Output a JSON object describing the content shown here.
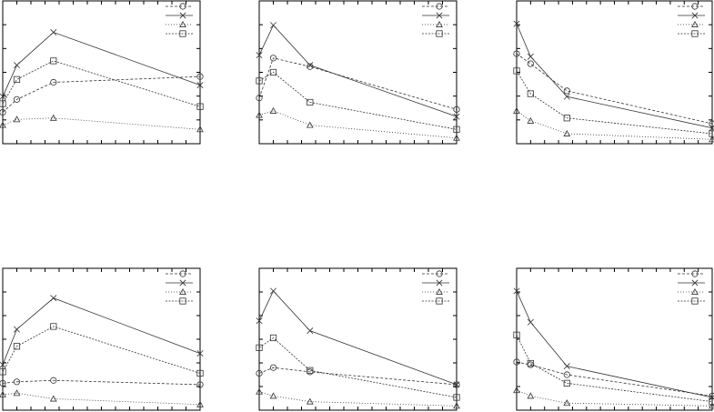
{
  "styles": {
    "line_color": "#333333",
    "series_dashes": [
      "3,2",
      "",
      "1,2",
      "2,1.5"
    ],
    "series_markers": [
      "circle",
      "cross",
      "triangle",
      "square"
    ]
  },
  "chart_data": [
    {
      "type": "line",
      "panel": "top-left",
      "xlim": [
        0,
        14
      ],
      "ylim": [
        0,
        1
      ],
      "xticks": 14,
      "yticks": 6,
      "legend_placement": "top-right",
      "grid": false,
      "series": [
        {
          "marker": "circle",
          "x": [
            0,
            1,
            3.6,
            14
          ],
          "y": [
            0.22,
            0.31,
            0.43,
            0.47
          ]
        },
        {
          "marker": "cross",
          "x": [
            0,
            1,
            3.6,
            14
          ],
          "y": [
            0.33,
            0.55,
            0.78,
            0.41
          ]
        },
        {
          "marker": "triangle",
          "x": [
            0,
            1,
            3.6,
            14
          ],
          "y": [
            0.13,
            0.17,
            0.18,
            0.1
          ]
        },
        {
          "marker": "square",
          "x": [
            0,
            1,
            3.6,
            14
          ],
          "y": [
            0.28,
            0.45,
            0.58,
            0.26
          ]
        }
      ]
    },
    {
      "type": "line",
      "panel": "top-middle",
      "xlim": [
        0,
        14
      ],
      "ylim": [
        0,
        1
      ],
      "xticks": 14,
      "yticks": 6,
      "legend_placement": "top-right",
      "grid": false,
      "series": [
        {
          "marker": "circle",
          "x": [
            0,
            1,
            3.6,
            14
          ],
          "y": [
            0.32,
            0.6,
            0.54,
            0.24
          ]
        },
        {
          "marker": "cross",
          "x": [
            0,
            1,
            3.6,
            14
          ],
          "y": [
            0.62,
            0.83,
            0.55,
            0.19
          ]
        },
        {
          "marker": "triangle",
          "x": [
            0,
            1,
            3.6,
            14
          ],
          "y": [
            0.2,
            0.23,
            0.13,
            0.04
          ]
        },
        {
          "marker": "square",
          "x": [
            0,
            1,
            3.6,
            14
          ],
          "y": [
            0.44,
            0.5,
            0.29,
            0.1
          ]
        }
      ]
    },
    {
      "type": "line",
      "panel": "top-right",
      "xlim": [
        0,
        14
      ],
      "ylim": [
        0,
        1
      ],
      "xticks": 14,
      "yticks": 6,
      "legend_placement": "top-right",
      "grid": false,
      "series": [
        {
          "marker": "circle",
          "x": [
            0,
            1,
            3.6,
            14
          ],
          "y": [
            0.63,
            0.56,
            0.37,
            0.14
          ]
        },
        {
          "marker": "cross",
          "x": [
            0,
            1,
            3.6,
            14
          ],
          "y": [
            0.84,
            0.61,
            0.33,
            0.11
          ]
        },
        {
          "marker": "triangle",
          "x": [
            0,
            1,
            3.6,
            14
          ],
          "y": [
            0.23,
            0.16,
            0.07,
            0.03
          ]
        },
        {
          "marker": "square",
          "x": [
            0,
            1,
            3.6,
            14
          ],
          "y": [
            0.51,
            0.35,
            0.18,
            0.07
          ]
        }
      ]
    },
    {
      "type": "line",
      "panel": "bottom-left",
      "xlim": [
        0,
        14
      ],
      "ylim": [
        0,
        1
      ],
      "xticks": 14,
      "yticks": 6,
      "legend_placement": "top-right",
      "grid": false,
      "series": [
        {
          "marker": "circle",
          "x": [
            0,
            1,
            3.6,
            14
          ],
          "y": [
            0.19,
            0.2,
            0.21,
            0.18
          ]
        },
        {
          "marker": "cross",
          "x": [
            0,
            1,
            3.6,
            14
          ],
          "y": [
            0.32,
            0.57,
            0.79,
            0.4
          ]
        },
        {
          "marker": "triangle",
          "x": [
            0,
            1,
            3.6,
            14
          ],
          "y": [
            0.11,
            0.12,
            0.08,
            0.04
          ]
        },
        {
          "marker": "square",
          "x": [
            0,
            1,
            3.6,
            14
          ],
          "y": [
            0.27,
            0.45,
            0.59,
            0.26
          ]
        }
      ]
    },
    {
      "type": "line",
      "panel": "bottom-middle",
      "xlim": [
        0,
        14
      ],
      "ylim": [
        0,
        1
      ],
      "xticks": 14,
      "yticks": 6,
      "legend_placement": "top-right",
      "grid": false,
      "series": [
        {
          "marker": "circle",
          "x": [
            0,
            1,
            3.6,
            14
          ],
          "y": [
            0.26,
            0.3,
            0.27,
            0.18
          ]
        },
        {
          "marker": "cross",
          "x": [
            0,
            1,
            3.6,
            14
          ],
          "y": [
            0.63,
            0.84,
            0.56,
            0.18
          ]
        },
        {
          "marker": "triangle",
          "x": [
            0,
            1,
            3.6,
            14
          ],
          "y": [
            0.13,
            0.1,
            0.06,
            0.03
          ]
        },
        {
          "marker": "square",
          "x": [
            0,
            1,
            3.6,
            14
          ],
          "y": [
            0.44,
            0.51,
            0.28,
            0.09
          ]
        }
      ]
    },
    {
      "type": "line",
      "panel": "bottom-right",
      "xlim": [
        0,
        14
      ],
      "ylim": [
        0,
        1
      ],
      "xticks": 14,
      "yticks": 6,
      "legend_placement": "top-right",
      "grid": false,
      "series": [
        {
          "marker": "circle",
          "x": [
            0,
            1,
            3.6,
            14
          ],
          "y": [
            0.34,
            0.32,
            0.25,
            0.1
          ]
        },
        {
          "marker": "cross",
          "x": [
            0,
            1,
            3.6,
            14
          ],
          "y": [
            0.84,
            0.62,
            0.31,
            0.09
          ]
        },
        {
          "marker": "triangle",
          "x": [
            0,
            1,
            3.6,
            14
          ],
          "y": [
            0.14,
            0.1,
            0.05,
            0.03
          ]
        },
        {
          "marker": "square",
          "x": [
            0,
            1,
            3.6,
            14
          ],
          "y": [
            0.53,
            0.33,
            0.19,
            0.06
          ]
        }
      ]
    }
  ]
}
